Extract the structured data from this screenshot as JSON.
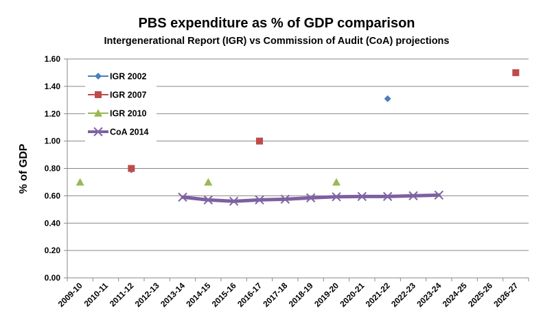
{
  "chart_data": {
    "type": "line",
    "title": "PBS expenditure as % of GDP comparison",
    "subtitle": "Intergenerational Report (IGR) vs Commission of Audit (CoA) projections",
    "xlabel": "",
    "ylabel": "% of GDP",
    "ylim": [
      0,
      1.6
    ],
    "ytick_step": 0.2,
    "ytick_labels": [
      "0.00",
      "0.20",
      "0.40",
      "0.60",
      "0.80",
      "1.00",
      "1.20",
      "1.40",
      "1.60"
    ],
    "grid": true,
    "legend_position": "top-left",
    "categories": [
      "2009-10",
      "2010-11",
      "2011-12",
      "2012-13",
      "2013-14",
      "2014-15",
      "2015-16",
      "2016-17",
      "2017-18",
      "2018-19",
      "2019-20",
      "2020-21",
      "2021-22",
      "2022-23",
      "2023-24",
      "2024-25",
      "2025-26",
      "2026-27"
    ],
    "series": [
      {
        "name": "IGR 2002",
        "color": "#4a7ebb",
        "marker": "diamond",
        "line": false,
        "values": [
          null,
          null,
          0.79,
          null,
          null,
          null,
          null,
          null,
          null,
          null,
          null,
          null,
          1.31,
          null,
          null,
          null,
          null,
          null
        ]
      },
      {
        "name": "IGR 2007",
        "color": "#be4b48",
        "marker": "square",
        "line": false,
        "values": [
          null,
          null,
          0.8,
          null,
          null,
          null,
          null,
          1.0,
          null,
          null,
          null,
          null,
          null,
          null,
          null,
          null,
          null,
          1.5
        ]
      },
      {
        "name": "IGR 2010",
        "color": "#98b954",
        "marker": "triangle",
        "line": false,
        "values": [
          0.7,
          null,
          null,
          null,
          null,
          0.7,
          null,
          null,
          null,
          null,
          0.7,
          null,
          null,
          null,
          null,
          null,
          null,
          null
        ]
      },
      {
        "name": "CoA 2014",
        "color": "#7d60a0",
        "marker": "x",
        "line": true,
        "values": [
          null,
          null,
          null,
          null,
          0.59,
          0.57,
          0.56,
          0.57,
          0.575,
          0.585,
          0.593,
          0.595,
          0.595,
          0.6,
          0.605,
          null,
          null,
          null
        ]
      }
    ]
  }
}
